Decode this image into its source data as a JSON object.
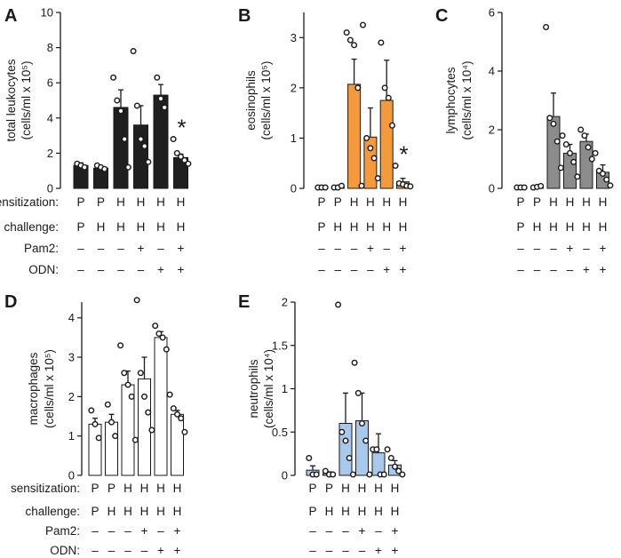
{
  "figure": {
    "row_labels": {
      "sensitization": "sensitization:",
      "challenge": "challenge:",
      "pam2": "Pam2:",
      "odn": "ODN:"
    },
    "conditions": {
      "sensitization": [
        "P",
        "P",
        "H",
        "H",
        "H",
        "H"
      ],
      "challenge": [
        "P",
        "H",
        "H",
        "H",
        "H",
        "H"
      ],
      "pam2": [
        "–",
        "–",
        "–",
        "+",
        "–",
        "+"
      ],
      "odn": [
        "–",
        "–",
        "–",
        "–",
        "+",
        "+"
      ]
    }
  },
  "chart_data": [
    {
      "panel": "A",
      "type": "bar",
      "bar_color": "#1f1f1f",
      "ylabel_line1": "total leukocytes",
      "ylabel_line2": "(cells/ml x 10⁵)",
      "ylim": [
        0,
        10
      ],
      "yticks": [
        0,
        2,
        4,
        6,
        8,
        10
      ],
      "ytick_labels": [
        "0",
        "2",
        "4",
        "6",
        "8",
        "10"
      ],
      "values": [
        1.3,
        1.15,
        4.6,
        3.6,
        5.3,
        1.75
      ],
      "errors": [
        0.15,
        0.1,
        1.0,
        1.1,
        0.6,
        0.2
      ],
      "points": [
        [
          1.4,
          1.3,
          1.2
        ],
        [
          1.3,
          1.2,
          1.1
        ],
        [
          6.3,
          5.0,
          4.4,
          2.8,
          1.2
        ],
        [
          7.8,
          4.7,
          2.8,
          2.4,
          1.5
        ],
        [
          6.3,
          5.1,
          4.6
        ],
        [
          2.8,
          2.0,
          1.8,
          1.6,
          1.4
        ]
      ],
      "significance": "*",
      "significance_index": 5
    },
    {
      "panel": "B",
      "type": "bar",
      "bar_color": "#f59a3c",
      "ylabel_line1": "eosinophils",
      "ylabel_line2": "(cells/ml x 10⁵)",
      "ylim": [
        0,
        3.5
      ],
      "yticks": [
        0,
        1,
        2,
        3
      ],
      "ytick_labels": [
        "0",
        "1",
        "2",
        "3"
      ],
      "values": [
        0.02,
        0.02,
        2.07,
        1.02,
        1.75,
        0.13
      ],
      "errors": [
        0.01,
        0.01,
        0.5,
        0.58,
        0.8,
        0.07
      ],
      "points": [
        [
          0.01,
          0.01,
          0.01
        ],
        [
          0.01,
          0.01,
          0.05
        ],
        [
          3.1,
          2.95,
          2.85,
          2.0,
          0.05
        ],
        [
          3.25,
          1.0,
          0.8,
          0.6,
          0.2
        ],
        [
          2.9,
          2.0,
          1.8,
          1.25
        ],
        [
          0.45,
          0.1,
          0.08,
          0.05,
          0.04
        ]
      ],
      "significance": "*",
      "significance_index": 5
    },
    {
      "panel": "C",
      "type": "bar",
      "bar_color": "#8c8c8c",
      "ylabel_line1": "lymphocytes",
      "ylabel_line2": "(cells/ml x 10⁴)",
      "ylim": [
        0,
        6
      ],
      "yticks": [
        0,
        2,
        4,
        6
      ],
      "ytick_labels": [
        "0",
        "2",
        "4",
        "6"
      ],
      "values": [
        0.02,
        0.05,
        2.45,
        1.2,
        1.6,
        0.55
      ],
      "errors": [
        0.01,
        0.02,
        0.8,
        0.3,
        0.25,
        0.25
      ],
      "points": [
        [
          0.02,
          0.02,
          0.02
        ],
        [
          0.03,
          0.05,
          0.08
        ],
        [
          5.5,
          2.4,
          2.2,
          1.6,
          0.7
        ],
        [
          1.8,
          1.5,
          1.2,
          0.9,
          0.4
        ],
        [
          2.0,
          1.8,
          1.4,
          1.0
        ],
        [
          1.2,
          0.6,
          0.5,
          0.3,
          0.1
        ]
      ],
      "significance": "",
      "significance_index": -1
    },
    {
      "panel": "D",
      "type": "bar",
      "bar_color": "#ffffff",
      "ylabel_line1": "macrophages",
      "ylabel_line2": "(cells/ml x 10⁵)",
      "ylim": [
        0,
        4.4
      ],
      "yticks": [
        0,
        1,
        2,
        3,
        4
      ],
      "ytick_labels": [
        "0",
        "1",
        "2",
        "3",
        "4"
      ],
      "values": [
        1.3,
        1.35,
        2.3,
        2.45,
        3.5,
        1.55
      ],
      "errors": [
        0.15,
        0.2,
        0.35,
        0.55,
        0.15,
        0.1
      ],
      "points": [
        [
          1.65,
          1.3,
          0.95
        ],
        [
          1.8,
          1.35,
          1.0
        ],
        [
          3.3,
          2.6,
          2.3,
          2.0,
          0.9
        ],
        [
          4.45,
          2.6,
          2.0,
          1.6,
          1.15
        ],
        [
          3.8,
          3.6,
          3.5,
          3.2
        ],
        [
          2.05,
          1.7,
          1.55,
          1.45,
          1.1
        ]
      ],
      "significance": "",
      "significance_index": -1
    },
    {
      "panel": "E",
      "type": "bar",
      "bar_color": "#a8c8ec",
      "ylabel_line1": "neutrophils",
      "ylabel_line2": "(cells/ml x 10⁴)",
      "ylim": [
        0,
        2
      ],
      "yticks": [
        0,
        0.5,
        1,
        1.5,
        2
      ],
      "ytick_labels": [
        "0",
        "0.5",
        "1",
        "1.5",
        "2"
      ],
      "values": [
        0.06,
        0.02,
        0.6,
        0.63,
        0.26,
        0.12
      ],
      "errors": [
        0.05,
        0.02,
        0.35,
        0.32,
        0.22,
        0.05
      ],
      "points": [
        [
          0.2,
          0.01,
          0.01
        ],
        [
          0.05,
          0.01,
          0.01
        ],
        [
          1.97,
          0.5,
          0.4,
          0.2,
          0.01
        ],
        [
          1.3,
          0.95,
          0.6,
          0.4,
          0.01
        ],
        [
          0.3,
          0.3,
          0.01,
          0.01
        ],
        [
          0.3,
          0.2,
          0.1,
          0.05,
          0.01
        ]
      ],
      "significance": "",
      "significance_index": -1
    }
  ]
}
